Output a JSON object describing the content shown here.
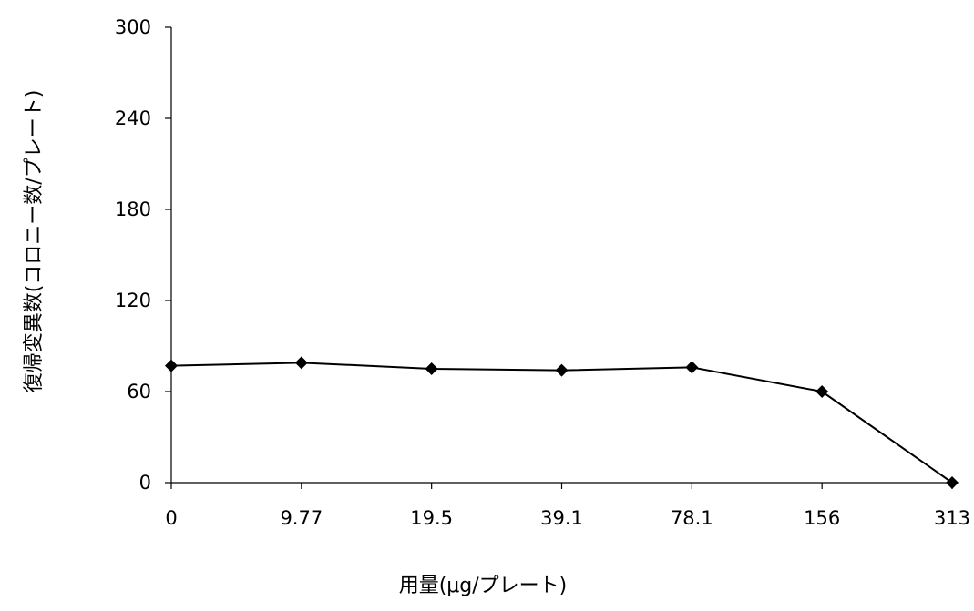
{
  "chart_data": {
    "type": "line",
    "title": "",
    "xlabel": "用量(μg/プレート)",
    "ylabel": "復帰変異数(コロニー数/プレート)",
    "categories": [
      "0",
      "9.77",
      "19.5",
      "39.1",
      "78.1",
      "156",
      "313"
    ],
    "series": [
      {
        "values": [
          77,
          79,
          75,
          74,
          76,
          60,
          0
        ]
      }
    ],
    "ylim": [
      0,
      300
    ],
    "yticks": [
      0,
      60,
      120,
      180,
      240,
      300
    ],
    "marker": "diamond",
    "grid": false,
    "legend": "none"
  },
  "colors": {
    "line": "#000000",
    "marker": "#000000",
    "axis": "#000000"
  }
}
